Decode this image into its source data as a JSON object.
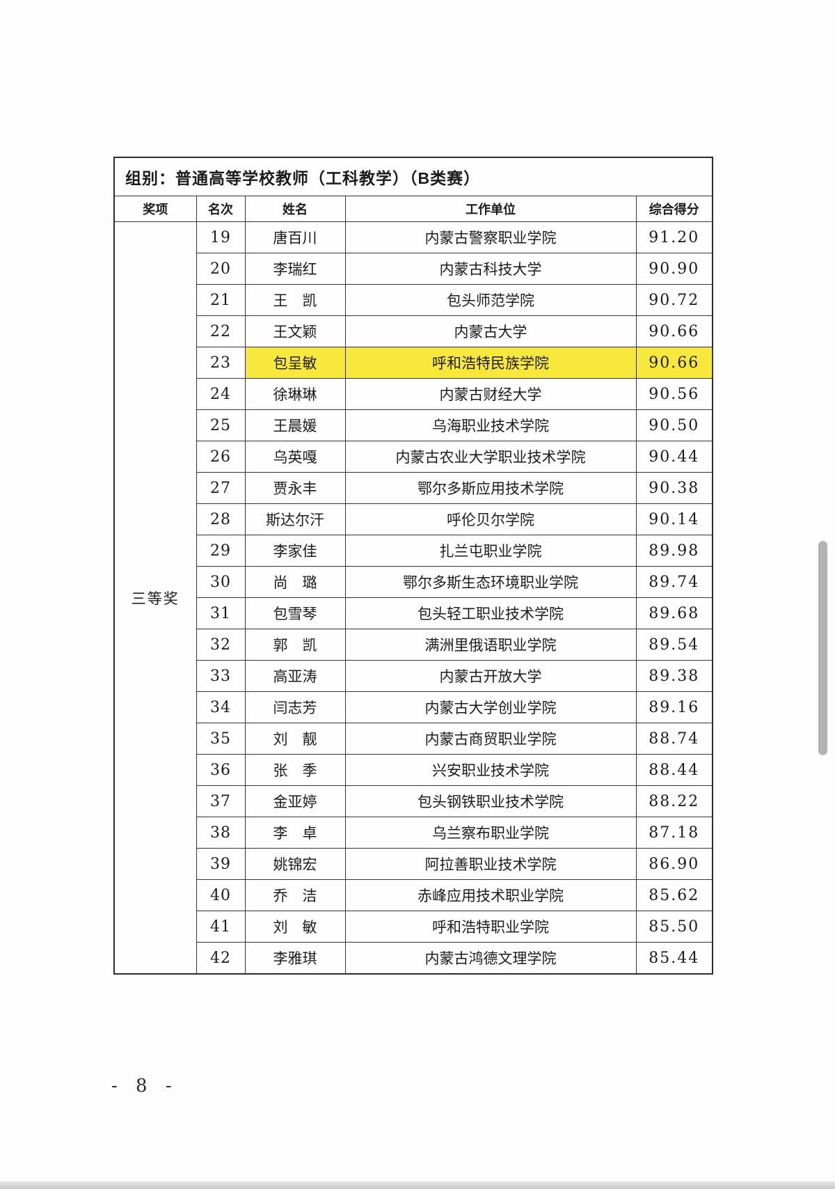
{
  "page": {
    "page_number": "- 8 -"
  },
  "colors": {
    "highlight_yellow": "#f8e83b",
    "scrollbar_gray": "#b4b4b4"
  },
  "table": {
    "group_title": "组别：普通高等学校教师（工科教学）（B类赛）",
    "columns": [
      "奖项",
      "名次",
      "姓名",
      "工作单位",
      "综合得分"
    ],
    "award_group": "三等奖",
    "rows": [
      {
        "rank": "19",
        "name": "唐百川",
        "unit": "内蒙古警察职业学院",
        "score": "91.20",
        "highlight": false
      },
      {
        "rank": "20",
        "name": "李瑞红",
        "unit": "内蒙古科技大学",
        "score": "90.90",
        "highlight": false
      },
      {
        "rank": "21",
        "name": "王　凯",
        "unit": "包头师范学院",
        "score": "90.72",
        "highlight": false
      },
      {
        "rank": "22",
        "name": "王文颖",
        "unit": "内蒙古大学",
        "score": "90.66",
        "highlight": false
      },
      {
        "rank": "23",
        "name": "包呈敏",
        "unit": "呼和浩特民族学院",
        "score": "90.66",
        "highlight": true
      },
      {
        "rank": "24",
        "name": "徐琳琳",
        "unit": "内蒙古财经大学",
        "score": "90.56",
        "highlight": false
      },
      {
        "rank": "25",
        "name": "王晨媛",
        "unit": "乌海职业技术学院",
        "score": "90.50",
        "highlight": false
      },
      {
        "rank": "26",
        "name": "乌英嘎",
        "unit": "内蒙古农业大学职业技术学院",
        "score": "90.44",
        "highlight": false
      },
      {
        "rank": "27",
        "name": "贾永丰",
        "unit": "鄂尔多斯应用技术学院",
        "score": "90.38",
        "highlight": false
      },
      {
        "rank": "28",
        "name": "斯达尔汗",
        "unit": "呼伦贝尔学院",
        "score": "90.14",
        "highlight": false
      },
      {
        "rank": "29",
        "name": "李家佳",
        "unit": "扎兰屯职业学院",
        "score": "89.98",
        "highlight": false
      },
      {
        "rank": "30",
        "name": "尚　璐",
        "unit": "鄂尔多斯生态环境职业学院",
        "score": "89.74",
        "highlight": false
      },
      {
        "rank": "31",
        "name": "包雪琴",
        "unit": "包头轻工职业技术学院",
        "score": "89.68",
        "highlight": false
      },
      {
        "rank": "32",
        "name": "郭　凯",
        "unit": "满洲里俄语职业学院",
        "score": "89.54",
        "highlight": false
      },
      {
        "rank": "33",
        "name": "高亚涛",
        "unit": "内蒙古开放大学",
        "score": "89.38",
        "highlight": false
      },
      {
        "rank": "34",
        "name": "闫志芳",
        "unit": "内蒙古大学创业学院",
        "score": "89.16",
        "highlight": false
      },
      {
        "rank": "35",
        "name": "刘　靓",
        "unit": "内蒙古商贸职业学院",
        "score": "88.74",
        "highlight": false
      },
      {
        "rank": "36",
        "name": "张　季",
        "unit": "兴安职业技术学院",
        "score": "88.44",
        "highlight": false
      },
      {
        "rank": "37",
        "name": "金亚婷",
        "unit": "包头钢铁职业技术学院",
        "score": "88.22",
        "highlight": false
      },
      {
        "rank": "38",
        "name": "李　卓",
        "unit": "乌兰察布职业学院",
        "score": "87.18",
        "highlight": false
      },
      {
        "rank": "39",
        "name": "姚锦宏",
        "unit": "阿拉善职业技术学院",
        "score": "86.90",
        "highlight": false
      },
      {
        "rank": "40",
        "name": "乔　洁",
        "unit": "赤峰应用技术职业学院",
        "score": "85.62",
        "highlight": false
      },
      {
        "rank": "41",
        "name": "刘　敏",
        "unit": "呼和浩特职业学院",
        "score": "85.50",
        "highlight": false
      },
      {
        "rank": "42",
        "name": "李雅琪",
        "unit": "内蒙古鸿德文理学院",
        "score": "85.44",
        "highlight": false
      }
    ]
  }
}
